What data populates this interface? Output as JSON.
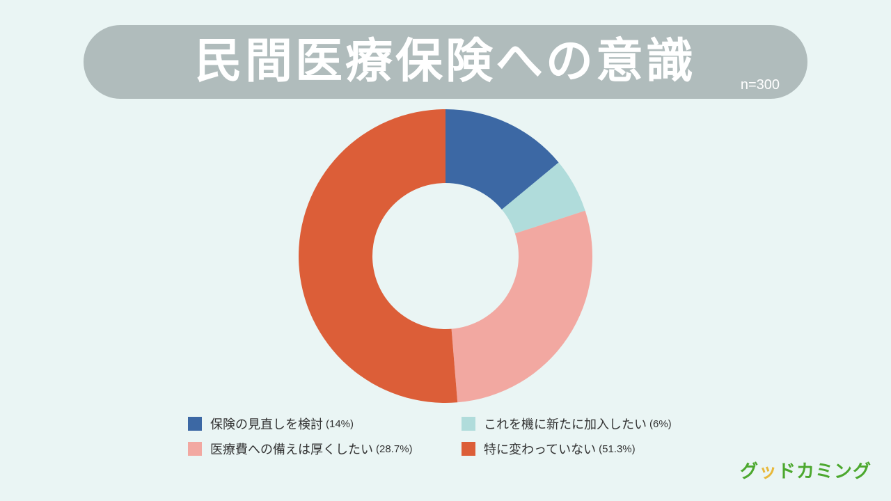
{
  "title": "民間医療保険への意識",
  "sample_size": "n=300",
  "brand": {
    "first": "グ",
    "accent": "ッ",
    "rest": "ドカミング",
    "colors": {
      "main": "#4ca82e",
      "accent": "#e8b83a"
    }
  },
  "chart_data": {
    "type": "pie",
    "variant": "donut",
    "start": "top",
    "direction": "clockwise",
    "slices": [
      {
        "label": "保険の見直しを検討",
        "pct_text": "(14%)",
        "value": 14,
        "color": "#3c68a4"
      },
      {
        "label": "これを機に新たに加入したい",
        "pct_text": "(6%)",
        "value": 6,
        "color": "#b0dcdb"
      },
      {
        "label": "医療費への備えは厚くしたい",
        "pct_text": "(28.7%)",
        "value": 28.7,
        "color": "#f2a8a1"
      },
      {
        "label": "特に変わっていない",
        "pct_text": "(51.3%)",
        "value": 51.3,
        "color": "#dc5e38"
      }
    ],
    "legend_placement": "bottom"
  }
}
